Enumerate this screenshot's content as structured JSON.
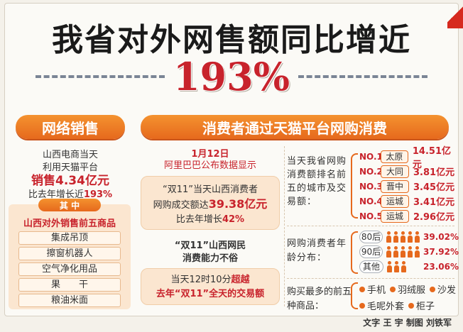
{
  "headline": "我省对外网售额同比增近",
  "headline_pct": "193%",
  "left": {
    "banner": "网络销售",
    "intro_line1": "山西电商当天",
    "intro_line2": "利用天猫平台",
    "sales_prefix": "销售",
    "sales_amount": "4.34亿元",
    "growth_prefix": "比去年增长近",
    "growth_pct": "193%",
    "sub_tab": "其  中",
    "sub_title": "山西对外销售前五商品",
    "products": [
      "集成吊顶",
      "擦窗机器人",
      "空气净化用品",
      "果　　干",
      "粮油米面"
    ]
  },
  "right": {
    "banner": "消费者通过天猫平台网购消费",
    "date": "1月12日",
    "source": "阿里巴巴公布数据显示",
    "box1_line1": "“双11”当天山西消费者",
    "box1_line2_prefix": "网购成交额达",
    "box1_amount": "39.38亿元",
    "box1_line3_prefix": "比去年增长",
    "box1_pct": "42%",
    "box2_title_line1": "“双11”山西网民",
    "box2_title_line2": "消费能力不俗",
    "box2_line1_prefix": "当天12时10分",
    "box2_line1_red": "超越",
    "box2_line2": "去年“双11”全天的交易额",
    "rank_label": "当天我省网购消费额排名前五的城市及交易额：",
    "ranks": [
      {
        "no": "NO.1",
        "city": "太原",
        "amount": "14.51亿元"
      },
      {
        "no": "NO.2",
        "city": "大同",
        "amount": "3.81亿元"
      },
      {
        "no": "NO.3",
        "city": "晋中",
        "amount": "3.45亿元"
      },
      {
        "no": "NO.4",
        "city": "运城",
        "amount": "3.41亿元"
      },
      {
        "no": "NO.5",
        "city": "运城",
        "amount": "2.96亿元"
      }
    ],
    "age_label": "网购消费者年龄分布：",
    "ages": [
      {
        "label": "80后",
        "pct": "39.02%",
        "share": 0.3902
      },
      {
        "label": "90后",
        "pct": "37.92%",
        "share": 0.3792
      },
      {
        "label": "其他",
        "pct": "23.06%",
        "share": 0.2306
      }
    ],
    "goods_label": "购买最多的前五种商品：",
    "goods": [
      "手机",
      "羽绒服",
      "沙发",
      "毛呢外套",
      "柜子"
    ]
  },
  "credit": "文字 王 宇   制图 刘铁军",
  "colors": {
    "accent_red": "#c8232c",
    "accent_orange": "#e6691d",
    "pill_bg": "#fbe6d0"
  }
}
